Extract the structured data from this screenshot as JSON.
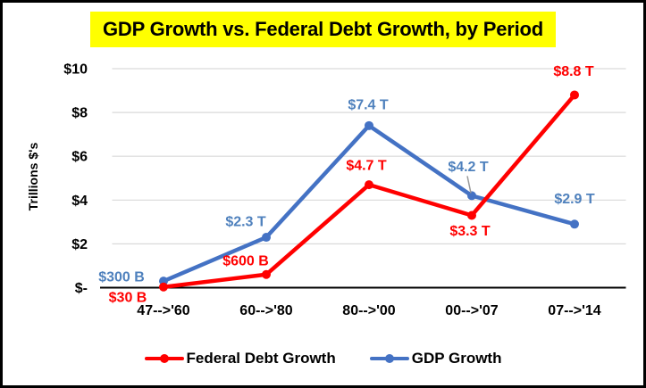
{
  "window": {
    "background": "#FFFFFF",
    "border_color": "#000000"
  },
  "title": {
    "text": "GDP Growth vs. Federal Debt Growth, by Period",
    "highlight_color": "#FFFF00",
    "text_color": "#000000"
  },
  "chart_data": {
    "type": "line",
    "title": "GDP Growth vs. Federal Debt Growth, by Period",
    "ylabel": "Trillions $'s",
    "xlabel": "",
    "categories": [
      "47-->'60",
      "60-->'80",
      "80-->'00",
      "00-->'07",
      "07-->'14"
    ],
    "y_axis": {
      "range": [
        0,
        10
      ],
      "tick_interval": 2,
      "tick_labels": [
        "$-",
        "$2",
        "$4",
        "$6",
        "$8",
        "$10"
      ],
      "grid": true,
      "gridline_color": "#D9D9D9",
      "axis_line_color": "#000000",
      "tick_label_color": "#000000"
    },
    "x_axis": {
      "tick_label_color": "#000000"
    },
    "series": [
      {
        "name": "Federal Debt Growth",
        "color": "#FF0000",
        "label_color": "#FF0000",
        "values_trillions": [
          0.03,
          0.6,
          4.7,
          3.3,
          8.8
        ],
        "point_labels": [
          "$30 B",
          "$600 B",
          "$4.7 T",
          "$3.3 T",
          "$8.8 T"
        ]
      },
      {
        "name": "GDP Growth",
        "color": "#4472C4",
        "label_color": "#4F81BD",
        "values_trillions": [
          0.3,
          2.3,
          7.4,
          4.2,
          2.9
        ],
        "point_labels": [
          "$300 B",
          "$2.3 T",
          "$7.4 T",
          "$4.2 T",
          "$2.9 T"
        ]
      }
    ],
    "legend": {
      "position": "bottom"
    },
    "label_offsets": [
      [
        [
          -40,
          11
        ],
        [
          -23,
          -16
        ],
        [
          -3,
          -22
        ],
        [
          -2,
          17
        ],
        [
          -1,
          -27
        ]
      ],
      [
        [
          -47,
          -5
        ],
        [
          -23,
          -18
        ],
        [
          -1,
          -24
        ],
        [
          -4,
          -33
        ],
        [
          0,
          -29
        ]
      ]
    ],
    "leader_line": {
      "series_index": 1,
      "point_index": 3,
      "color": "#999999"
    }
  }
}
